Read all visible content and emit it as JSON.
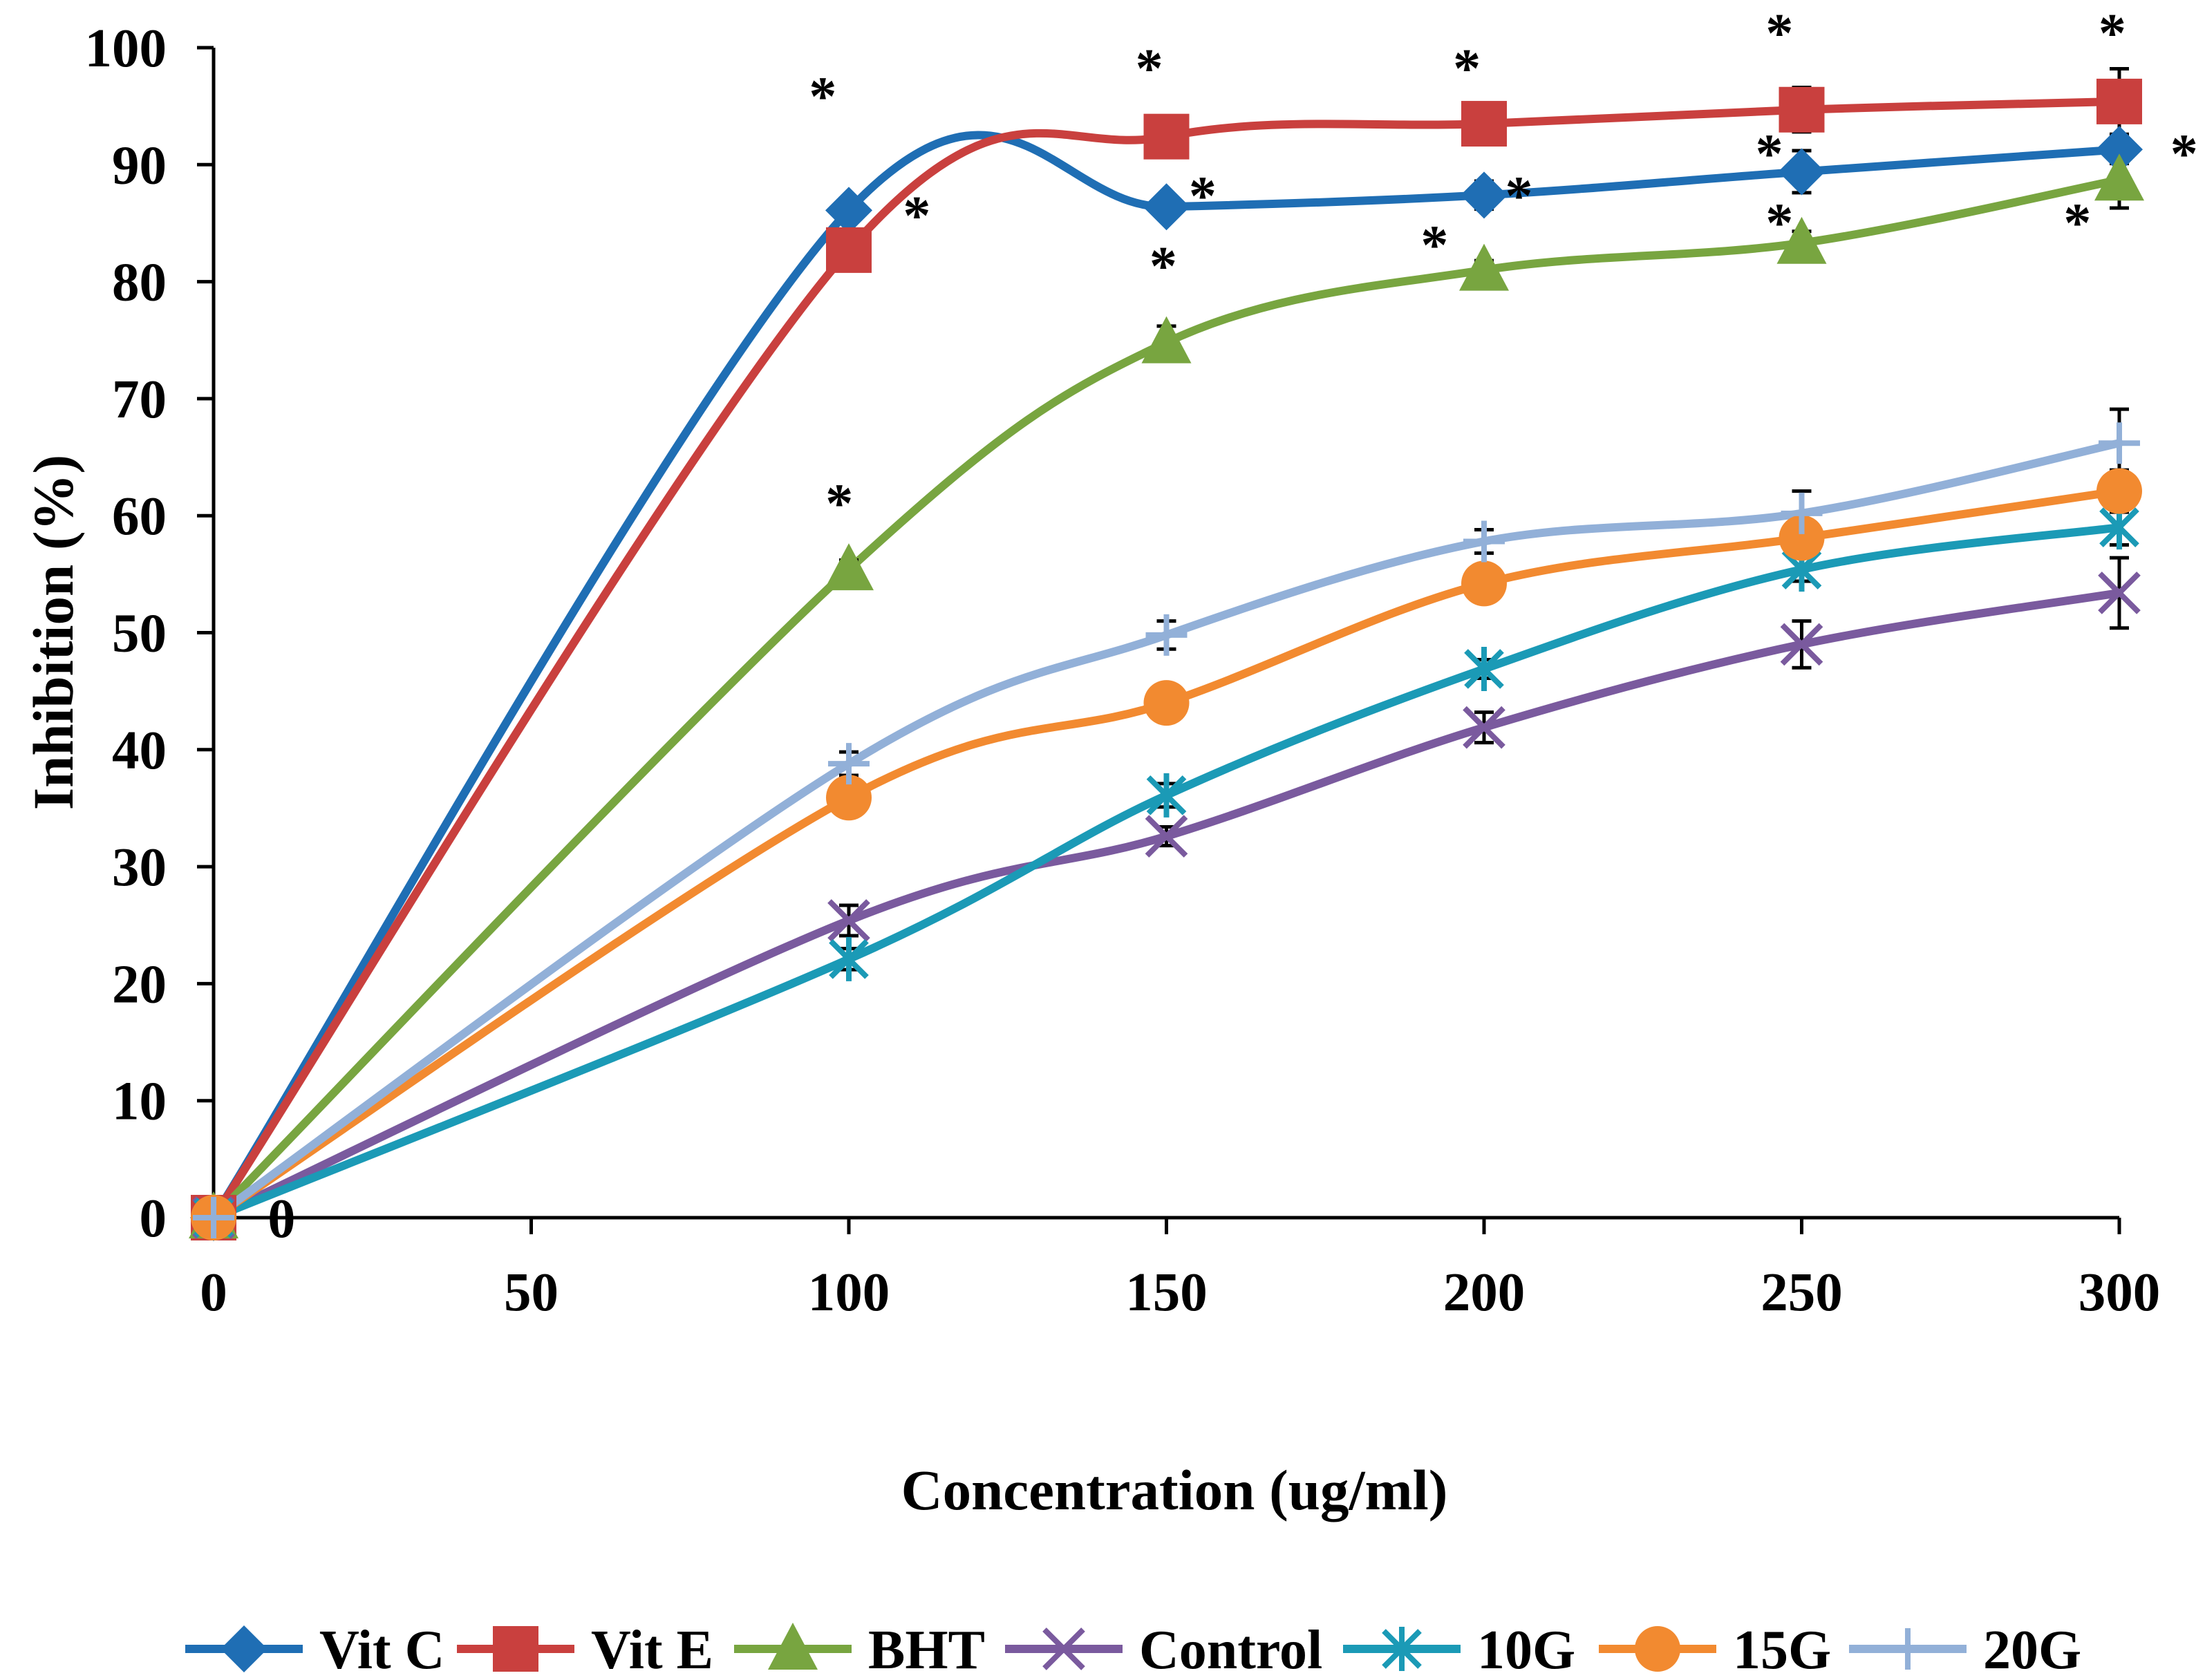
{
  "chart_data": {
    "type": "line",
    "title": "",
    "xlabel": "Concentration (ug/ml)",
    "ylabel": "Inhibition (%)",
    "xlim": [
      0,
      300
    ],
    "ylim": [
      0,
      100
    ],
    "xticks": [
      0,
      50,
      100,
      150,
      200,
      250,
      300
    ],
    "yticks": [
      0,
      10,
      20,
      30,
      40,
      50,
      60,
      70,
      80,
      90,
      100
    ],
    "grid": false,
    "legend": "bottom",
    "x": [
      0,
      100,
      150,
      200,
      250,
      300
    ],
    "series": [
      {
        "name": "Vit C",
        "color": "#1f6eb4",
        "marker": "diamond",
        "values": [
          0,
          86.1,
          86.4,
          87.4,
          89.4,
          91.3
        ],
        "errors": [
          0,
          1.0,
          0.8,
          1.2,
          1.8,
          1.2
        ]
      },
      {
        "name": "Vit E",
        "color": "#c9403e",
        "marker": "square",
        "values": [
          0,
          82.7,
          92.4,
          93.5,
          94.7,
          95.4
        ],
        "errors": [
          0,
          0.8,
          0.6,
          0.8,
          1.9,
          2.8
        ]
      },
      {
        "name": "BHT",
        "color": "#78a540",
        "marker": "triangle",
        "values": [
          0,
          55.4,
          74.8,
          81.0,
          83.3,
          88.7
        ],
        "errors": [
          0,
          0.8,
          1.4,
          0.8,
          1.0,
          2.4
        ]
      },
      {
        "name": "Control",
        "color": "#7a5a9e",
        "marker": "x",
        "values": [
          0,
          25.4,
          32.6,
          41.9,
          49.0,
          53.4
        ],
        "errors": [
          0,
          1.3,
          0.8,
          1.3,
          2.0,
          3.0
        ]
      },
      {
        "name": "10G",
        "color": "#1b9ab6",
        "marker": "star",
        "values": [
          0,
          22.1,
          36.1,
          46.9,
          55.4,
          59.0
        ],
        "errors": [
          0,
          0.9,
          1.0,
          0.8,
          1.0,
          1.5
        ]
      },
      {
        "name": "15G",
        "color": "#f28a30",
        "marker": "circle",
        "values": [
          0,
          35.9,
          44.0,
          54.2,
          58.1,
          62.1
        ],
        "errors": [
          0,
          1.0,
          0.8,
          1.6,
          1.2,
          1.8
        ]
      },
      {
        "name": "20G",
        "color": "#92b0d8",
        "marker": "plus",
        "values": [
          0,
          38.8,
          49.8,
          57.8,
          60.2,
          66.2
        ],
        "errors": [
          0,
          1.0,
          1.2,
          1.0,
          1.9,
          2.9
        ]
      }
    ],
    "annotations": [
      {
        "text": "*",
        "x": 95.9,
        "y": 96.6
      },
      {
        "text": "*",
        "x": 110.7,
        "y": 86.4
      },
      {
        "text": "*",
        "x": 98.5,
        "y": 61.8
      },
      {
        "text": "*",
        "x": 147.3,
        "y": 99.0
      },
      {
        "text": "*",
        "x": 155.7,
        "y": 88.1
      },
      {
        "text": "*",
        "x": 149.5,
        "y": 82.1
      },
      {
        "text": "*",
        "x": 197.3,
        "y": 99.0
      },
      {
        "text": "*",
        "x": 205.5,
        "y": 88.1
      },
      {
        "text": "*",
        "x": 192.2,
        "y": 83.9
      },
      {
        "text": "*",
        "x": 246.5,
        "y": 102.0
      },
      {
        "text": "*",
        "x": 244.9,
        "y": 91.7
      },
      {
        "text": "*",
        "x": 246.5,
        "y": 85.8
      },
      {
        "text": "*",
        "x": 298.9,
        "y": 102.0
      },
      {
        "text": "*",
        "x": 310.2,
        "y": 91.7
      },
      {
        "text": "*",
        "x": 293.4,
        "y": 85.8
      },
      {
        "text": "0",
        "x": 10.7,
        "y": 0
      }
    ]
  }
}
